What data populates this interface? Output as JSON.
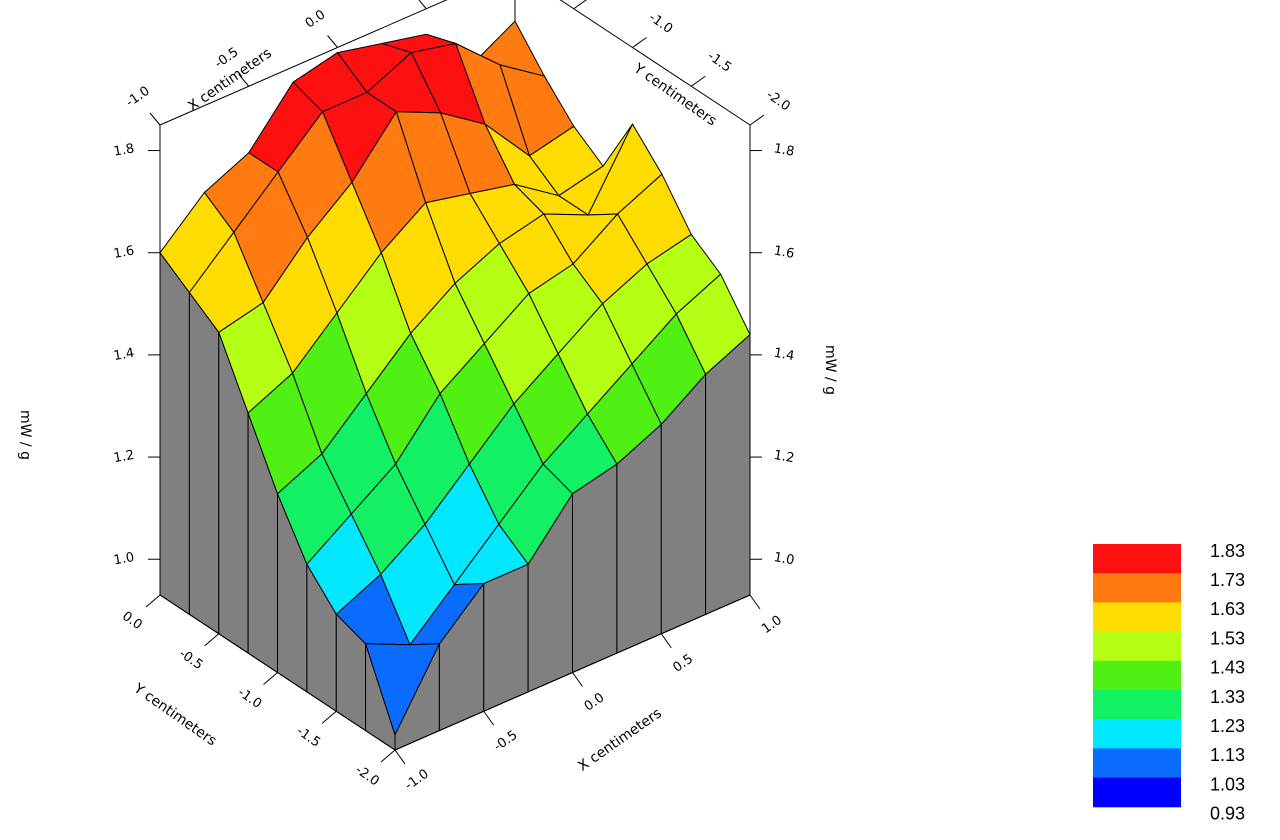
{
  "chart_data": {
    "type": "surface",
    "xlabel": "X centimeters",
    "ylabel": "Y centimeters",
    "zlabel": "mW / g",
    "x_ticks": [
      "-1.0",
      "-0.5",
      "0.0",
      "0.5",
      "1.0"
    ],
    "y_ticks": [
      "0.0",
      "-0.5",
      "-1.0",
      "-1.5",
      "-2.0"
    ],
    "z_ticks": [
      "1.0",
      "1.2",
      "1.4",
      "1.6",
      "1.8"
    ],
    "xlim": [
      -1.0,
      1.0
    ],
    "ylim": [
      -2.0,
      0.0
    ],
    "zlim": [
      0.93,
      1.85
    ],
    "x": [
      -1.0,
      -0.75,
      -0.5,
      -0.25,
      0.0,
      0.25,
      0.5,
      0.75,
      1.0
    ],
    "y": [
      0.0,
      -0.25,
      -0.5,
      -0.75,
      -1.0,
      -1.25,
      -1.5,
      -1.75,
      -2.0
    ],
    "z": [
      [
        1.6,
        1.68,
        1.72,
        1.82,
        1.84,
        1.82,
        1.8,
        1.7,
        1.75
      ],
      [
        1.56,
        1.64,
        1.72,
        1.8,
        1.8,
        1.84,
        1.82,
        1.74,
        1.68
      ],
      [
        1.52,
        1.54,
        1.63,
        1.7,
        1.8,
        1.76,
        1.7,
        1.6,
        1.62
      ],
      [
        1.4,
        1.44,
        1.52,
        1.6,
        1.66,
        1.64,
        1.62,
        1.56,
        1.58
      ],
      [
        1.28,
        1.32,
        1.4,
        1.48,
        1.54,
        1.58,
        1.6,
        1.56,
        1.7
      ],
      [
        1.18,
        1.24,
        1.3,
        1.4,
        1.46,
        1.52,
        1.54,
        1.6,
        1.64
      ],
      [
        1.12,
        1.16,
        1.22,
        1.3,
        1.38,
        1.44,
        1.5,
        1.54,
        1.56
      ],
      [
        1.1,
        1.06,
        1.14,
        1.22,
        1.3,
        1.36,
        1.42,
        1.48,
        1.52
      ],
      [
        0.96,
        1.1,
        1.18,
        1.18,
        1.28,
        1.3,
        1.34,
        1.4,
        1.44
      ]
    ],
    "legend": {
      "labels": [
        "1.83",
        "1.73",
        "1.63",
        "1.53",
        "1.43",
        "1.33",
        "1.23",
        "1.13",
        "1.03",
        "0.93"
      ],
      "colors": [
        "#ff1010",
        "#ff7a10",
        "#ffdc00",
        "#b4ff14",
        "#50f014",
        "#14f064",
        "#00e8ff",
        "#0a6cff",
        "#0000ff"
      ]
    },
    "skirt_color": "#808080"
  }
}
